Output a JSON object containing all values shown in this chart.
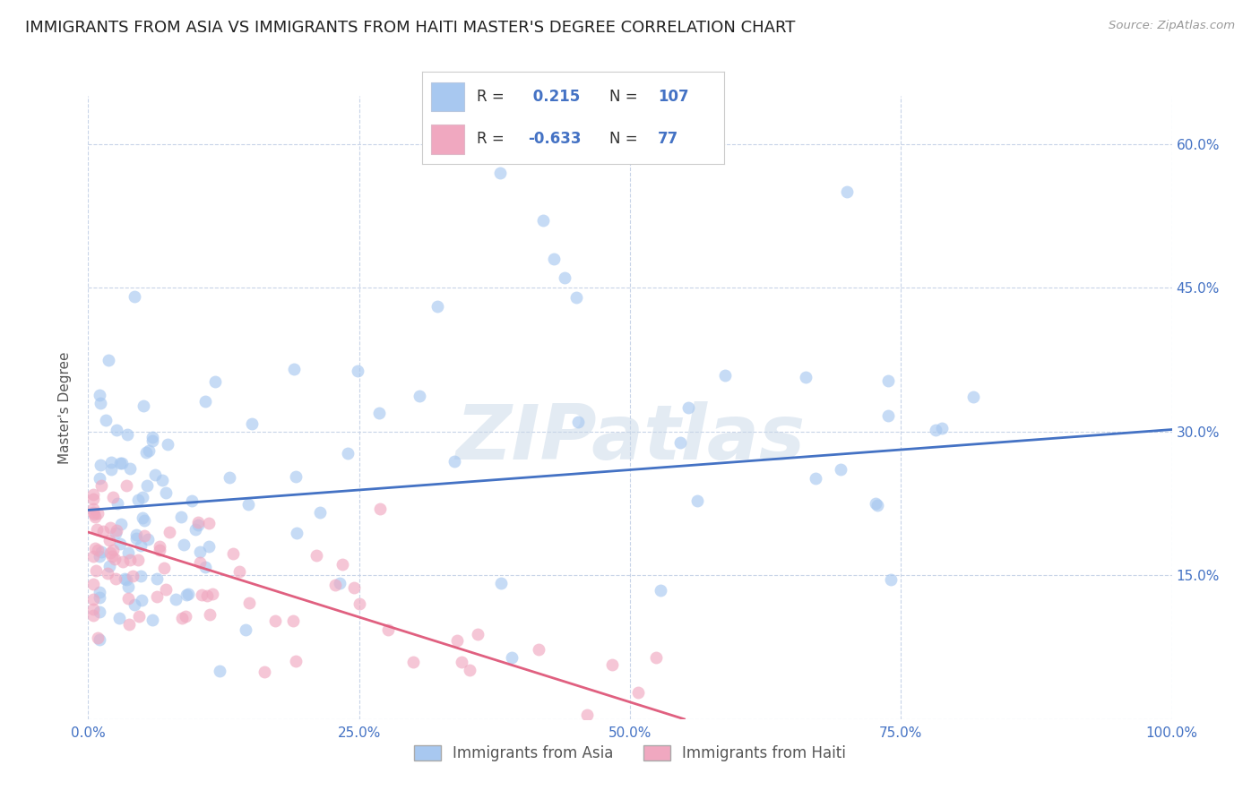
{
  "title": "IMMIGRANTS FROM ASIA VS IMMIGRANTS FROM HAITI MASTER'S DEGREE CORRELATION CHART",
  "source": "Source: ZipAtlas.com",
  "ylabel": "Master's Degree",
  "xlabel": "",
  "xlim": [
    0.0,
    1.0
  ],
  "ylim": [
    0.0,
    0.65
  ],
  "xticks": [
    0.0,
    0.25,
    0.5,
    0.75,
    1.0
  ],
  "xtick_labels": [
    "0.0%",
    "25.0%",
    "50.0%",
    "75.0%",
    "100.0%"
  ],
  "yticks": [
    0.0,
    0.15,
    0.3,
    0.45,
    0.6
  ],
  "right_ytick_labels": [
    "",
    "15.0%",
    "30.0%",
    "45.0%",
    "60.0%"
  ],
  "blue_R": 0.215,
  "blue_N": 107,
  "pink_R": -0.633,
  "pink_N": 77,
  "blue_color": "#a8c8f0",
  "pink_color": "#f0a8c0",
  "blue_line_color": "#4472c4",
  "pink_line_color": "#e06080",
  "legend_blue_label": "Immigrants from Asia",
  "legend_pink_label": "Immigrants from Haiti",
  "grid_color": "#c8d4e8",
  "background_color": "#ffffff",
  "blue_line_x0": 0.0,
  "blue_line_y0": 0.218,
  "blue_line_x1": 1.0,
  "blue_line_y1": 0.302,
  "pink_line_x0": 0.0,
  "pink_line_y0": 0.195,
  "pink_line_x1": 0.55,
  "pink_line_y1": 0.0,
  "watermark": "ZIPatlas",
  "title_fontsize": 13,
  "label_fontsize": 11,
  "tick_fontsize": 11
}
